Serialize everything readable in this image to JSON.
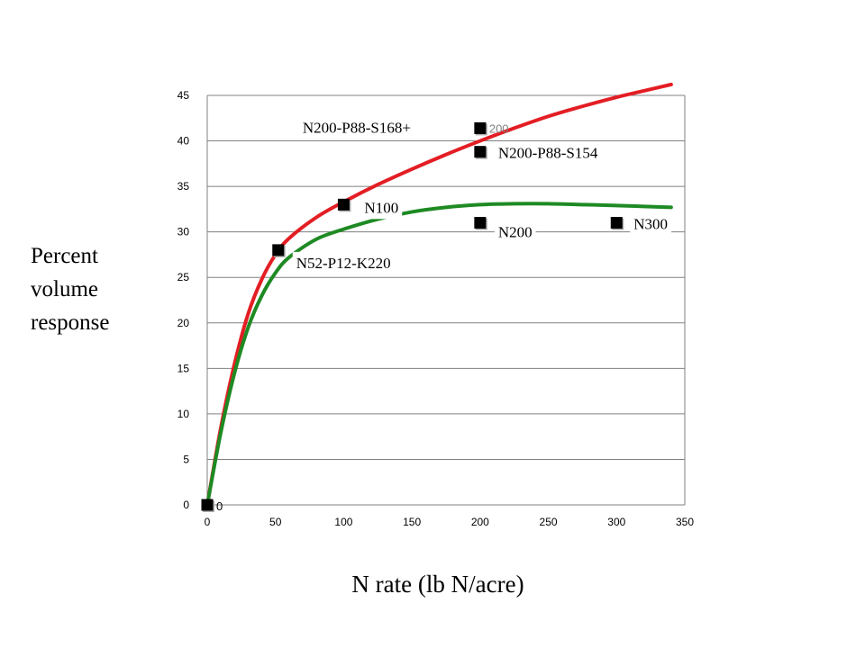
{
  "chart_data": {
    "type": "scatter",
    "xlabel": "N rate (lb N/acre)",
    "ylabel_lines": [
      "Percent",
      "volume",
      "response"
    ],
    "xlim": [
      0,
      350
    ],
    "ylim": [
      0,
      45
    ],
    "x_ticks": [
      0,
      50,
      100,
      150,
      200,
      250,
      300,
      350
    ],
    "y_ticks": [
      0,
      5,
      10,
      15,
      20,
      25,
      30,
      35,
      40,
      45
    ],
    "grid": "horizontal",
    "points": [
      {
        "x": 0,
        "y": 0,
        "label": "0"
      },
      {
        "x": 52,
        "y": 28,
        "label": "N52-P12-K220"
      },
      {
        "x": 100,
        "y": 33,
        "label": "N100"
      },
      {
        "x": 200,
        "y": 31,
        "label": "N200"
      },
      {
        "x": 200,
        "y": 38.8,
        "label": "N200-P88-S154"
      },
      {
        "x": 200,
        "y": 41.4,
        "label": "N200-P88-S168+",
        "secondary_label": "200"
      },
      {
        "x": 300,
        "y": 31,
        "label": "N300"
      }
    ],
    "series": [
      {
        "color": "#e31e24",
        "x": [
          0,
          10,
          20,
          30,
          40,
          50,
          60,
          80,
          100,
          125,
          150,
          175,
          200,
          225,
          250,
          275,
          300,
          320,
          340
        ],
        "y": [
          0,
          8.5,
          15.5,
          21,
          24.8,
          27.5,
          29.3,
          31.6,
          33.3,
          35.2,
          36.9,
          38.5,
          40.0,
          41.4,
          42.7,
          43.8,
          44.8,
          45.5,
          46.2
        ]
      },
      {
        "color": "#1e8a23",
        "x": [
          0,
          10,
          20,
          30,
          40,
          50,
          60,
          80,
          100,
          125,
          150,
          175,
          200,
          225,
          250,
          275,
          300,
          320,
          340
        ],
        "y": [
          0,
          8.0,
          14.5,
          19.5,
          23.0,
          25.5,
          27.2,
          29.2,
          30.3,
          31.4,
          32.2,
          32.7,
          33.0,
          33.1,
          33.1,
          33.0,
          32.9,
          32.8,
          32.7
        ]
      }
    ]
  }
}
